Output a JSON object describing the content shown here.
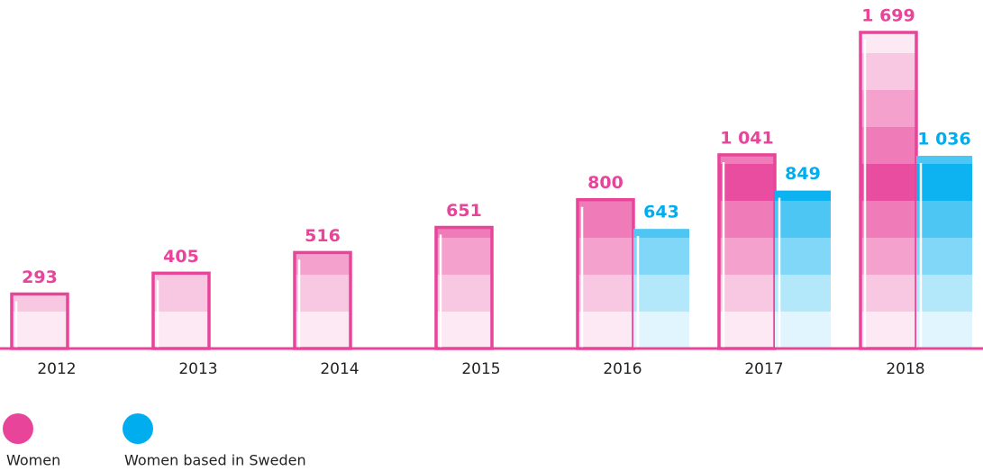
{
  "chart_data": {
    "type": "bar",
    "categories": [
      "2012",
      "2013",
      "2014",
      "2015",
      "2016",
      "2017",
      "2018"
    ],
    "series": [
      {
        "name": "Women",
        "color": "#e8449a",
        "values": [
          293,
          405,
          516,
          651,
          800,
          1041,
          1699
        ],
        "value_labels": [
          "293",
          "405",
          "516",
          "651",
          "800",
          "1 041",
          "1 699"
        ]
      },
      {
        "name": "Women based in Sweden",
        "color": "#00aeef",
        "values": [
          null,
          null,
          null,
          null,
          643,
          849,
          1036
        ],
        "value_labels": [
          null,
          null,
          null,
          null,
          "643",
          "849",
          "1 036"
        ]
      }
    ]
  }
}
